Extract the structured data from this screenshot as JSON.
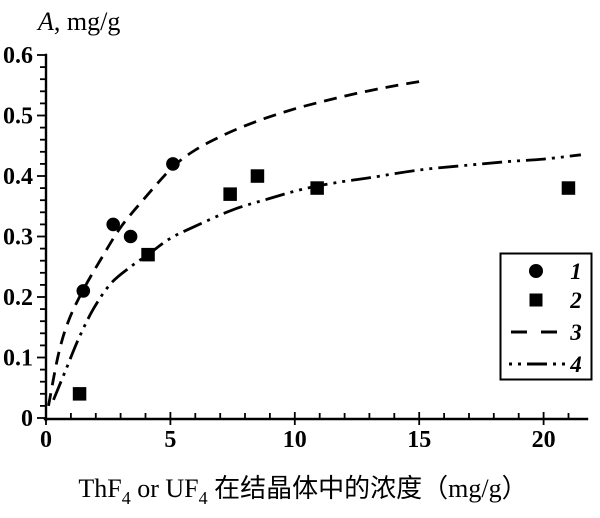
{
  "figure": {
    "y_axis_title": {
      "var": "A",
      "rest": ", mg/g"
    },
    "x_axis_title": {
      "part1": "ThF",
      "sub1": "4",
      "part2": " or UF",
      "sub2": "4",
      "part3": " 在结晶体中的浓度（mg/g）"
    }
  },
  "colors": {
    "foreground": "#000000",
    "background": "#ffffff"
  },
  "chart_data": {
    "type": "scatter",
    "title": "",
    "xlabel": "ThF4 or UF4 在结晶体中的浓度（mg/g）",
    "ylabel": "A, mg/g",
    "grid": false,
    "x_axis": {
      "min": 0,
      "max": 21.7,
      "major_ticks": [
        0,
        5,
        10,
        15,
        20
      ],
      "tick_labels": [
        "0",
        "5",
        "10",
        "15",
        "20"
      ],
      "minor_step": 1
    },
    "y_axis": {
      "min": 0,
      "max": 0.6,
      "major_ticks": [
        0,
        0.1,
        0.2,
        0.3,
        0.4,
        0.5,
        0.6
      ],
      "tick_labels": [
        "0",
        "0.1",
        "0.2",
        "0.3",
        "0.4",
        "0.5",
        "0.6"
      ],
      "minor_step": 0.02
    },
    "series": [
      {
        "name": "1",
        "kind": "scatter",
        "marker": "circle",
        "points": [
          [
            1.5,
            0.21
          ],
          [
            2.7,
            0.32
          ],
          [
            3.4,
            0.3
          ],
          [
            5.1,
            0.42
          ]
        ]
      },
      {
        "name": "2",
        "kind": "scatter",
        "marker": "square",
        "points": [
          [
            1.35,
            0.04
          ],
          [
            4.1,
            0.27
          ],
          [
            7.4,
            0.37
          ],
          [
            8.5,
            0.4
          ],
          [
            10.9,
            0.38
          ],
          [
            21.0,
            0.38
          ]
        ]
      },
      {
        "name": "3",
        "kind": "curve",
        "style": "dashed",
        "points": [
          [
            0.1,
            0.02
          ],
          [
            0.5,
            0.105
          ],
          [
            0.9,
            0.16
          ],
          [
            1.5,
            0.212
          ],
          [
            2.2,
            0.262
          ],
          [
            3.0,
            0.315
          ],
          [
            4.0,
            0.365
          ],
          [
            5.1,
            0.415
          ],
          [
            6.0,
            0.443
          ],
          [
            7.0,
            0.465
          ],
          [
            8.0,
            0.483
          ],
          [
            9.0,
            0.498
          ],
          [
            10.0,
            0.511
          ],
          [
            11.0,
            0.522
          ],
          [
            12.0,
            0.532
          ],
          [
            13.0,
            0.541
          ],
          [
            14.0,
            0.549
          ],
          [
            15.0,
            0.556
          ]
        ]
      },
      {
        "name": "4",
        "kind": "curve",
        "style": "dash-dot-dot",
        "points": [
          [
            0.3,
            0.03
          ],
          [
            0.8,
            0.08
          ],
          [
            1.3,
            0.13
          ],
          [
            1.9,
            0.18
          ],
          [
            2.6,
            0.222
          ],
          [
            3.4,
            0.25
          ],
          [
            4.1,
            0.27
          ],
          [
            5.0,
            0.297
          ],
          [
            6.0,
            0.317
          ],
          [
            7.5,
            0.344
          ],
          [
            9.0,
            0.363
          ],
          [
            10.2,
            0.377
          ],
          [
            11.5,
            0.388
          ],
          [
            13.0,
            0.397
          ],
          [
            15.0,
            0.41
          ],
          [
            17.0,
            0.418
          ],
          [
            18.6,
            0.424
          ],
          [
            20.0,
            0.428
          ],
          [
            21.5,
            0.435
          ]
        ]
      }
    ],
    "legend": {
      "position": "right-middle",
      "entries": [
        {
          "marker": "circle",
          "label": "1"
        },
        {
          "marker": "square",
          "label": "2"
        },
        {
          "marker": "dashed-line",
          "label": "3"
        },
        {
          "marker": "dash-dot-dot-line",
          "label": "4"
        }
      ]
    }
  }
}
